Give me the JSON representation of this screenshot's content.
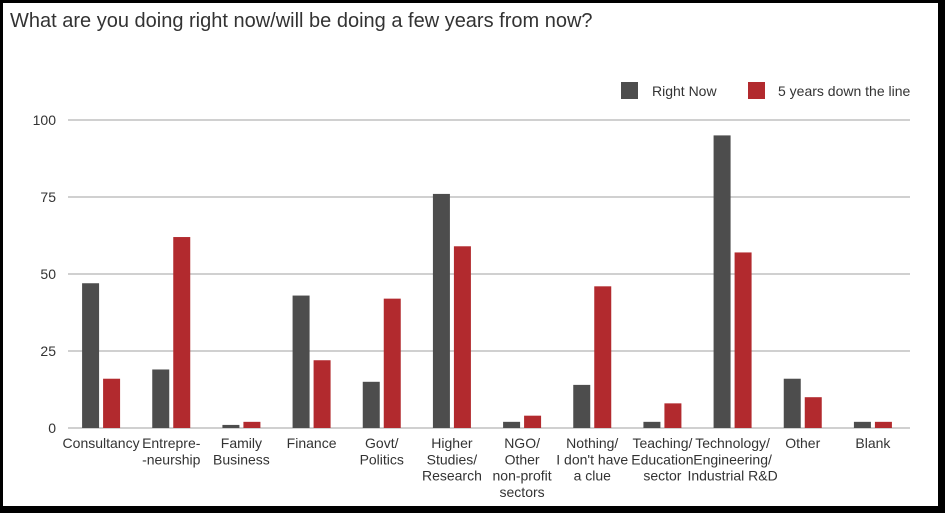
{
  "title": "What are you doing right now/will be doing a few years from now?",
  "colors": {
    "right_now": "#4d4d4d",
    "five_years": "#b22a2e",
    "grid": "#b3b3b3"
  },
  "chart_data": {
    "type": "bar",
    "title": "What are you doing right now/will be doing a few years from now?",
    "xlabel": "",
    "ylabel": "",
    "ylim": [
      0,
      100
    ],
    "yticks": [
      "0",
      "25",
      "50",
      "75",
      "100"
    ],
    "grid": true,
    "legend_position": "top-right",
    "categories": [
      [
        "Consultancy"
      ],
      [
        "Entrepre-",
        "-neurship"
      ],
      [
        "Family",
        "Business"
      ],
      [
        "Finance"
      ],
      [
        "Govt/",
        "Politics"
      ],
      [
        "Higher",
        "Studies/",
        "Research"
      ],
      [
        "NGO/",
        "Other",
        "non-profit",
        "sectors"
      ],
      [
        "Nothing/",
        "I don't have",
        "a clue"
      ],
      [
        "Teaching/",
        "Education",
        "sector"
      ],
      [
        "Technology/",
        "Engineering/",
        "Industrial R&D"
      ],
      [
        "Other"
      ],
      [
        "Blank"
      ]
    ],
    "series": [
      {
        "name": "Right Now",
        "color": "#4d4d4d",
        "values": [
          47,
          19,
          1,
          43,
          15,
          76,
          2,
          14,
          2,
          95,
          16,
          2
        ]
      },
      {
        "name": "5 years down the line",
        "color": "#b22a2e",
        "values": [
          16,
          62,
          2,
          22,
          42,
          59,
          4,
          46,
          8,
          57,
          10,
          2
        ]
      }
    ]
  }
}
